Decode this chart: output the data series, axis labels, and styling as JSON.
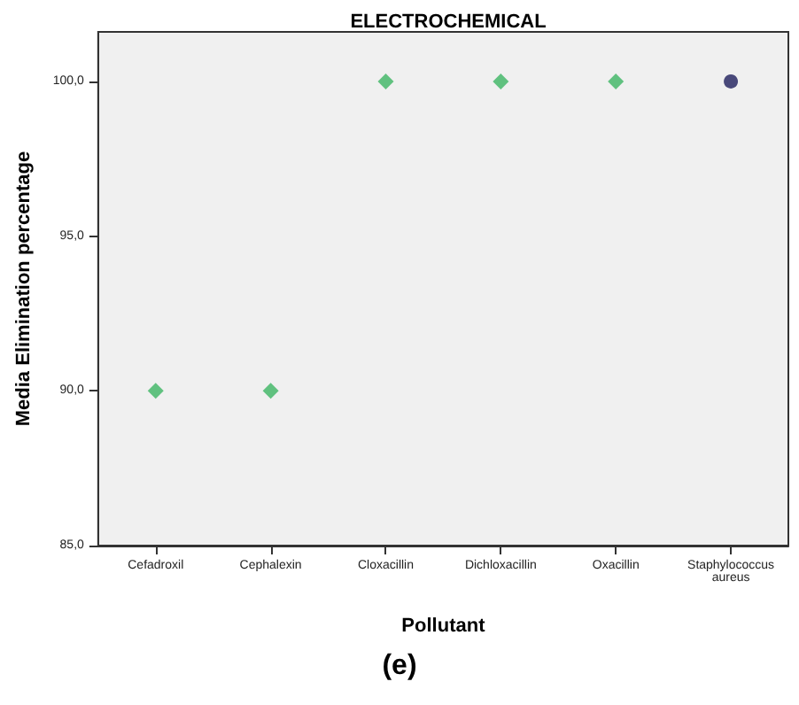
{
  "chart_data": {
    "type": "scatter",
    "title": "ELECTROCHEMICAL",
    "xlabel": "Pollutant",
    "ylabel": "Media Elimination percentage",
    "categories": [
      "Cefadroxil",
      "Cephalexin",
      "Cloxacillin",
      "Dichloxacillin",
      "Oxacillin",
      "Staphylococcus\naureus"
    ],
    "series": [
      {
        "color": "#3cb563",
        "marker": "diamond",
        "values": [
          90,
          90,
          100,
          100,
          100,
          null
        ]
      },
      {
        "color": "#1f1f5c",
        "marker": "circle",
        "values": [
          null,
          null,
          null,
          null,
          null,
          100
        ]
      }
    ],
    "ylim": [
      85,
      101.6
    ],
    "yticks": [
      {
        "value": 85,
        "label": "85,0"
      },
      {
        "value": 90,
        "label": "90,0"
      },
      {
        "value": 95,
        "label": "95,0"
      },
      {
        "value": 100,
        "label": "100,0"
      }
    ],
    "grid": false,
    "annotations": [
      "(e)"
    ]
  }
}
